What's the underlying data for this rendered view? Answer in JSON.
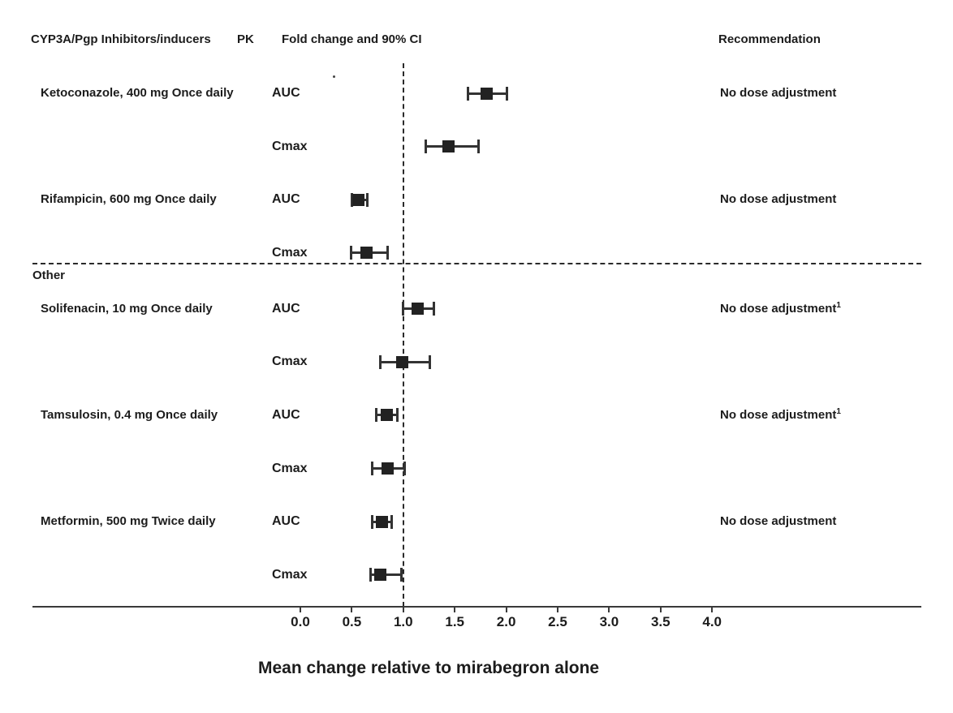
{
  "headers": {
    "drug_column": "CYP3A/Pgp Inhibitors/inducers",
    "pk_column": "PK",
    "plot_column": "Fold change and 90% CI",
    "recommendation_column": "Recommendation"
  },
  "section_label": "Other",
  "chart_data": {
    "type": "forest",
    "title": "",
    "xlabel": "Mean change relative to mirabegron alone",
    "reference_line": 1.0,
    "x_ticks": [
      0.0,
      0.5,
      1.0,
      1.5,
      2.0,
      2.5,
      3.0,
      3.5,
      4.0
    ],
    "xlim": [
      0.0,
      4.0
    ],
    "ci_level": "90% CI",
    "groups": [
      {
        "drug": "Ketoconazole, 400 mg Once daily",
        "recommendation": "No dose adjustment",
        "superscript": "",
        "section": "CYP3A/Pgp Inhibitors/inducers",
        "rows": [
          {
            "pk": "AUC",
            "est": 1.81,
            "lo": 1.63,
            "hi": 2.01
          },
          {
            "pk": "Cmax",
            "est": 1.44,
            "lo": 1.22,
            "hi": 1.73
          }
        ]
      },
      {
        "drug": "Rifampicin, 600 mg Once daily",
        "recommendation": "No dose adjustment",
        "superscript": "",
        "section": "CYP3A/Pgp Inhibitors/inducers",
        "rows": [
          {
            "pk": "AUC",
            "est": 0.56,
            "lo": 0.5,
            "hi": 0.65
          },
          {
            "pk": "Cmax",
            "est": 0.64,
            "lo": 0.49,
            "hi": 0.85
          }
        ]
      },
      {
        "drug": "Solifenacin, 10 mg Once daily",
        "recommendation": "No dose adjustment",
        "superscript": "1",
        "section": "Other",
        "rows": [
          {
            "pk": "AUC",
            "est": 1.14,
            "lo": 1.0,
            "hi": 1.3
          },
          {
            "pk": "Cmax",
            "est": 0.99,
            "lo": 0.78,
            "hi": 1.26
          }
        ]
      },
      {
        "drug": "Tamsulosin, 0.4 mg Once daily",
        "recommendation": "No dose adjustment",
        "superscript": "1",
        "section": "Other",
        "rows": [
          {
            "pk": "AUC",
            "est": 0.84,
            "lo": 0.74,
            "hi": 0.94
          },
          {
            "pk": "Cmax",
            "est": 0.85,
            "lo": 0.7,
            "hi": 1.01
          }
        ]
      },
      {
        "drug": "Metformin, 500 mg Twice daily",
        "recommendation": "No dose adjustment",
        "superscript": "",
        "section": "Other",
        "rows": [
          {
            "pk": "AUC",
            "est": 0.79,
            "lo": 0.7,
            "hi": 0.89
          },
          {
            "pk": "Cmax",
            "est": 0.78,
            "lo": 0.68,
            "hi": 0.98
          }
        ]
      }
    ]
  },
  "colors": {
    "background": "#ffffff",
    "text": "#1c1c1c",
    "marker": "#222222",
    "line": "#333333"
  }
}
